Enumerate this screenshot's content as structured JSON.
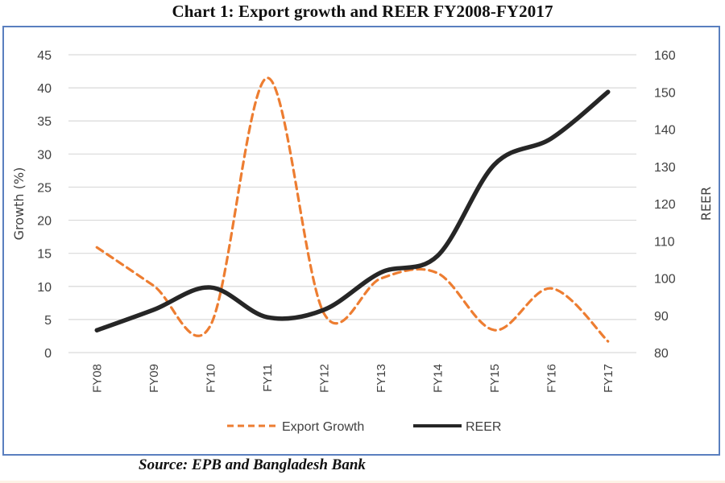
{
  "title": "Chart 1: Export growth and REER FY2008-FY2017",
  "source": "Source: EPB and Bangladesh Bank",
  "colors": {
    "export_growth": "#ed7d31",
    "reer": "#262626",
    "gridline": "#d9d9d9",
    "frame": "#5a7fbf"
  },
  "chart_data": {
    "type": "line",
    "title": "Chart 1: Export growth and REER FY2008-FY2017",
    "categories": [
      "FY08",
      "FY09",
      "FY10",
      "FY11",
      "FY12",
      "FY13",
      "FY14",
      "FY15",
      "FY16",
      "FY17"
    ],
    "series": [
      {
        "name": "Export Growth",
        "axis": "left",
        "style": "dashed",
        "values": [
          15.9,
          10.1,
          4.1,
          41.5,
          5.9,
          11.2,
          12.0,
          3.4,
          9.7,
          1.7
        ]
      },
      {
        "name": "REER",
        "axis": "right",
        "style": "solid",
        "values": [
          86.0,
          91.5,
          97.5,
          89.5,
          91.5,
          101.5,
          106.0,
          130.5,
          137.5,
          150.0
        ]
      }
    ],
    "ylabel": "Growth (%)",
    "y2label": "REER",
    "xlabel": "",
    "ylim": [
      0,
      45
    ],
    "y2lim": [
      80,
      160
    ],
    "yticks": [
      "0",
      "5",
      "10",
      "15",
      "20",
      "25",
      "30",
      "35",
      "40",
      "45"
    ],
    "y2ticks": [
      "80",
      "90",
      "100",
      "110",
      "120",
      "130",
      "140",
      "150",
      "160"
    ],
    "grid": true,
    "smooth": true,
    "legend": {
      "position": "bottom",
      "entries": [
        "Export Growth",
        "REER"
      ]
    }
  }
}
